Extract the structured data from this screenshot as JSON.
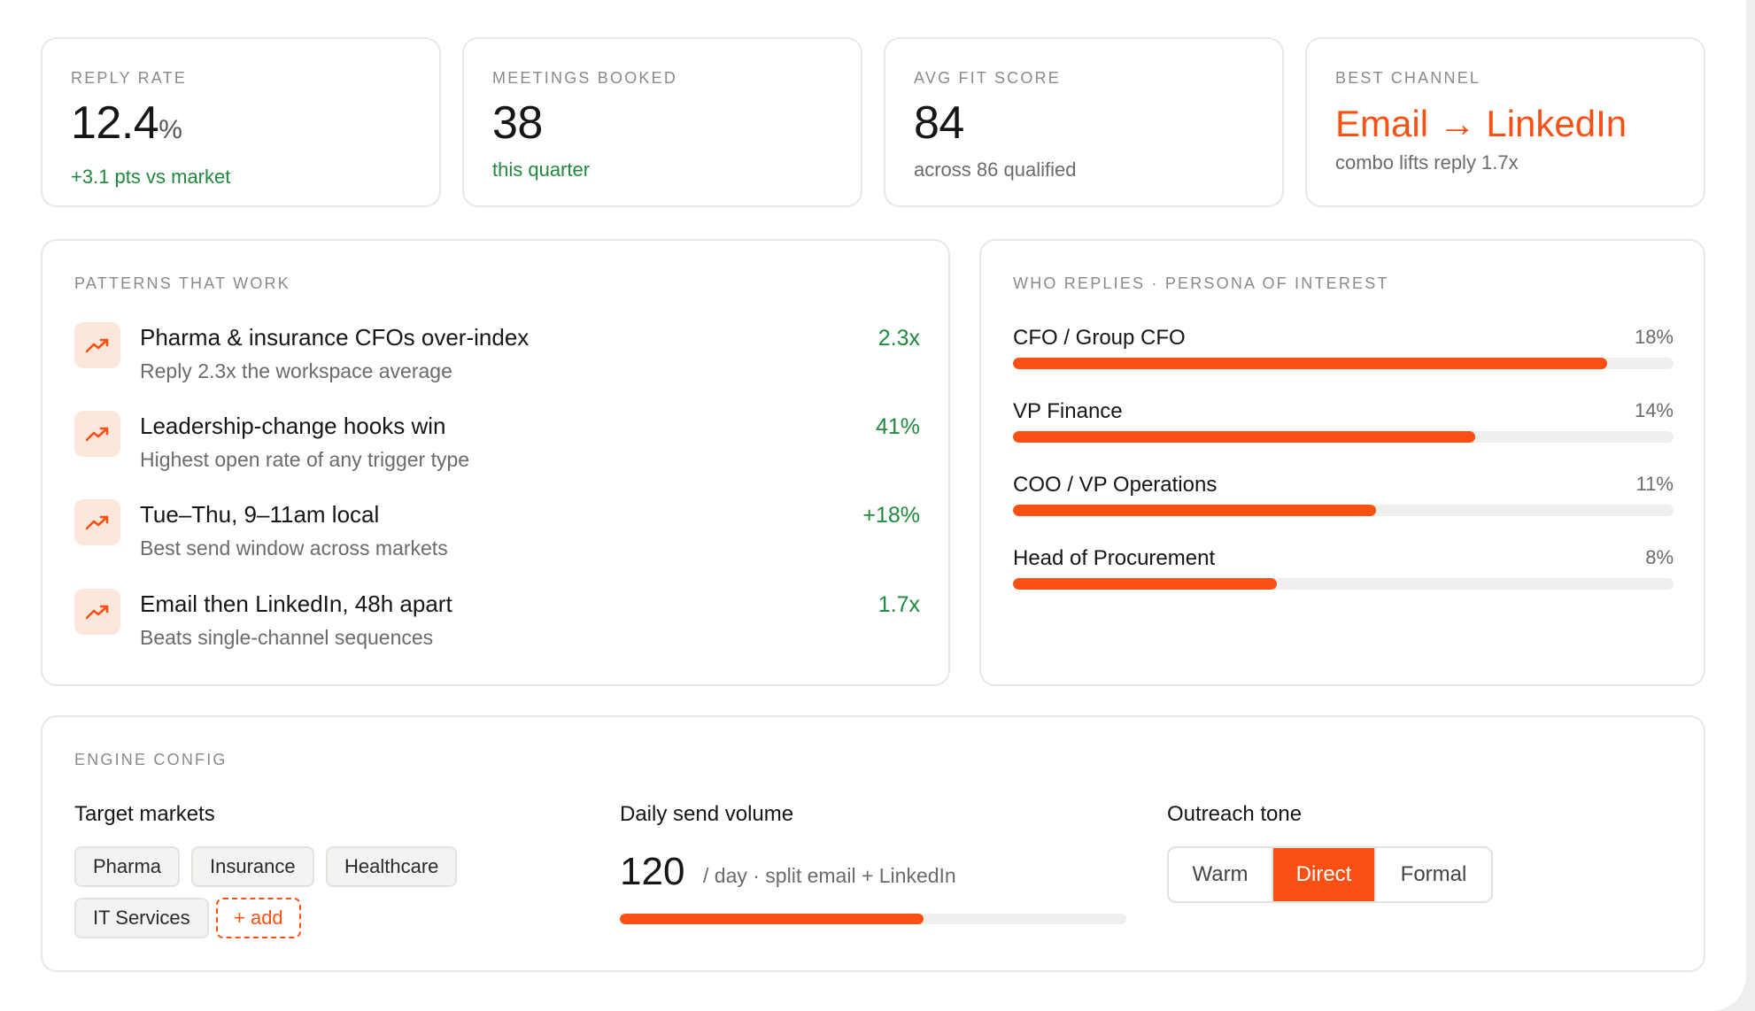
{
  "accent_color": "#fa5014",
  "positive_color": "#1f8a3e",
  "kpis": {
    "reply_rate": {
      "label": "REPLY RATE",
      "value": "12.4",
      "unit": "%",
      "sub": "+3.1 pts vs market"
    },
    "meetings": {
      "label": "MEETINGS BOOKED",
      "value": "38",
      "sub": "this quarter"
    },
    "fit": {
      "label": "AVG FIT SCORE",
      "value": "84",
      "sub": "across 86 qualified"
    },
    "channel": {
      "label": "BEST CHANNEL",
      "value": "Email → LinkedIn",
      "sub": "combo lifts reply 1.7x"
    }
  },
  "patterns": {
    "heading": "PATTERNS THAT WORK",
    "icon": "trending-up-icon",
    "items": [
      {
        "title": "Pharma & insurance CFOs over-index",
        "desc": "Reply 2.3x the workspace average",
        "metric": "2.3x"
      },
      {
        "title": "Leadership-change hooks win",
        "desc": "Highest open rate of any trigger type",
        "metric": "41%"
      },
      {
        "title": "Tue–Thu, 9–11am local",
        "desc": "Best send window across markets",
        "metric": "+18%"
      },
      {
        "title": "Email then LinkedIn, 48h apart",
        "desc": "Beats single-channel sequences",
        "metric": "1.7x"
      }
    ]
  },
  "personas": {
    "heading": "WHO REPLIES · PERSONA OF INTEREST",
    "items": [
      {
        "name": "CFO / Group CFO",
        "value": "18%",
        "fill": 0.9
      },
      {
        "name": "VP Finance",
        "value": "14%",
        "fill": 0.7
      },
      {
        "name": "COO / VP Operations",
        "value": "11%",
        "fill": 0.55
      },
      {
        "name": "Head of Procurement",
        "value": "8%",
        "fill": 0.4
      }
    ]
  },
  "engine": {
    "heading": "ENGINE CONFIG",
    "markets_label": "Target markets",
    "markets": [
      "Pharma",
      "Insurance",
      "Healthcare",
      "IT Services"
    ],
    "add_label": "+ add",
    "volume_label": "Daily send volume",
    "volume_value": "120",
    "volume_sub": "/ day · split email + LinkedIn",
    "volume_fill": 0.6,
    "tone_label": "Outreach tone",
    "tones": [
      "Warm",
      "Direct",
      "Formal"
    ],
    "tone_selected": "Direct"
  }
}
